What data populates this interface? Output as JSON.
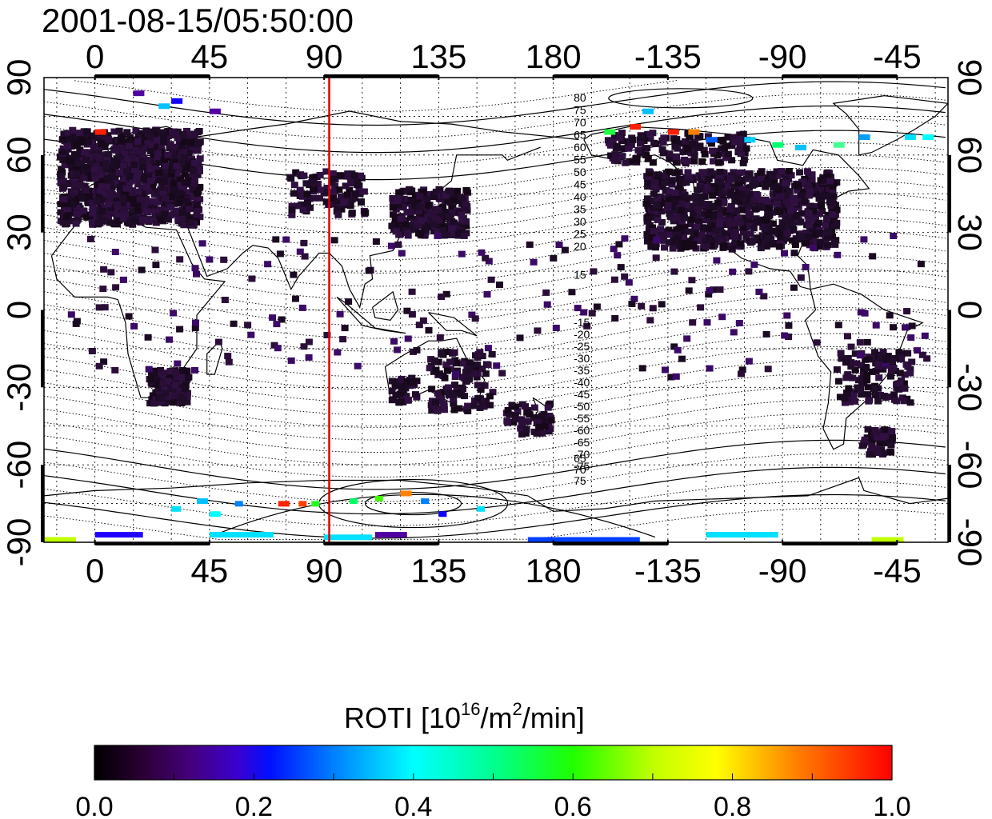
{
  "title": "2001-08-15/05:50:00",
  "map": {
    "x_ticks_top": [
      "0",
      "45",
      "90",
      "135",
      "180",
      "-135",
      "-90",
      "-45"
    ],
    "x_ticks_bottom": [
      "0",
      "45",
      "90",
      "135",
      "180",
      "-135",
      "-90",
      "-45"
    ],
    "y_ticks_left": [
      "90",
      "60",
      "30",
      "0",
      "-30",
      "-60",
      "-90"
    ],
    "y_ticks_right": [
      "90",
      "60",
      "30",
      "0",
      "-30",
      "-60",
      "-90"
    ],
    "lon_range": [
      -20,
      335
    ],
    "lat_range": [
      -90,
      90
    ],
    "grid": "dotted, every 15 degrees",
    "marker_longitude": 92,
    "marker_color": "#dd0000",
    "contour_labels_north": [
      "80",
      "75",
      "70",
      "65",
      "60",
      "55",
      "50",
      "45",
      "40",
      "35",
      "30",
      "25",
      "20",
      "15"
    ],
    "contour_labels_south": [
      "-15",
      "-20",
      "-25",
      "-30",
      "-35",
      "-40",
      "-45",
      "-50",
      "-55",
      "-60",
      "-65",
      "-70",
      "-75"
    ],
    "contour_labels_south_cap": [
      "65",
      "70",
      "75"
    ]
  },
  "colorbar": {
    "title_main": "ROTI  [10",
    "title_sup1": "16",
    "title_mid": "/m",
    "title_sup2": "2",
    "title_end": "/min]",
    "ticks": [
      "0.0",
      "0.2",
      "0.4",
      "0.6",
      "0.8",
      "1.0"
    ],
    "range": [
      0,
      1
    ],
    "colors": [
      "#000000",
      "#3a0050",
      "#5a00a0",
      "#2000ff",
      "#0080ff",
      "#00e0ff",
      "#00ff80",
      "#40ff00",
      "#c0ff00",
      "#ffff00",
      "#ff8000",
      "#ff0000"
    ]
  }
}
